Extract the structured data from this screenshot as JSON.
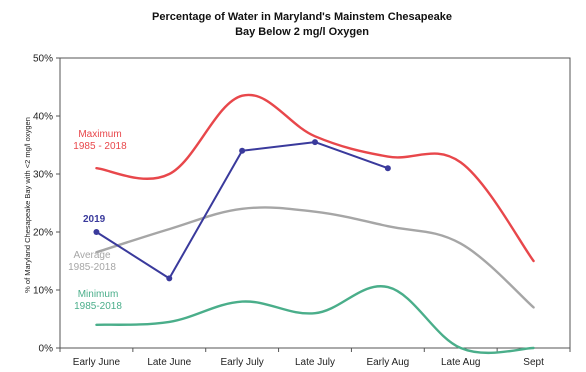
{
  "chart_data": {
    "type": "line",
    "title_line1": "Percentage of Water in Maryland's Mainstem Chesapeake",
    "title_line2": "Bay Below 2 mg/l Oxygen",
    "ylabel": "% of Maryland Chesapeake Bay with <2 mg/l oxygen",
    "xlabel": "",
    "categories": [
      "Early June",
      "Late June",
      "Early July",
      "Late July",
      "Early Aug",
      "Late Aug",
      "Sept"
    ],
    "ylim": [
      0,
      50
    ],
    "y_ticks": [
      0,
      10,
      20,
      30,
      40,
      50
    ],
    "y_tick_labels": [
      "0%",
      "10%",
      "20%",
      "30%",
      "40%",
      "50%"
    ],
    "grid": false,
    "series": [
      {
        "name": "Maximum 1985 - 2018",
        "label_line1": "Maximum",
        "label_line2": "1985 - 2018",
        "color": "#e8474b",
        "smooth": true,
        "markers": false,
        "values": [
          31,
          30,
          43.5,
          36.5,
          33,
          32,
          15
        ]
      },
      {
        "name": "Average 1985-2018",
        "label_line1": "Average",
        "label_line2": "1985-2018",
        "color": "#a6a6a6",
        "smooth": true,
        "markers": false,
        "values": [
          16.5,
          20.5,
          24,
          23.5,
          21,
          18,
          7
        ]
      },
      {
        "name": "Minimum 1985-2018",
        "label_line1": "Minimum",
        "label_line2": "1985-2018",
        "color": "#4aae8a",
        "smooth": true,
        "markers": false,
        "values": [
          4,
          4.5,
          8,
          6,
          10.5,
          0,
          0
        ]
      },
      {
        "name": "2019",
        "label_line1": "2019",
        "label_line2": "",
        "color": "#3a3a9c",
        "smooth": false,
        "markers": true,
        "values": [
          20,
          12,
          34,
          35.5,
          31,
          null,
          null
        ]
      }
    ]
  }
}
